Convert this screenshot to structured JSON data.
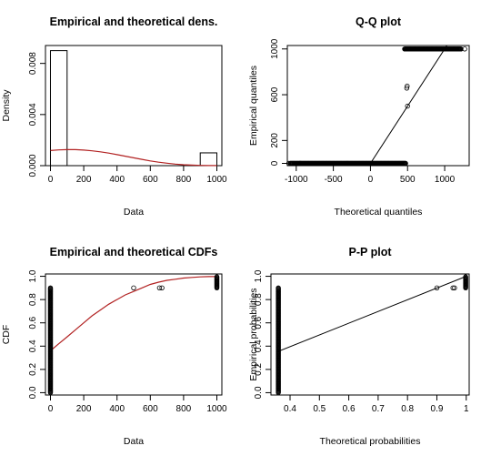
{
  "chart_data": [
    {
      "type": "bar",
      "title": "Empirical and theoretical dens.",
      "xlabel": "Data",
      "ylabel": "Density",
      "xlim": [
        -30,
        1030
      ],
      "ylim": [
        0,
        0.0094
      ],
      "xticks": [
        0,
        200,
        400,
        600,
        800,
        1000
      ],
      "yticks": [
        0.0,
        0.004,
        0.008
      ],
      "ytick_labels": [
        "0.000",
        "0.004",
        "0.008"
      ],
      "histogram": [
        {
          "x0": 0,
          "x1": 100,
          "density": 0.009
        },
        {
          "x0": 100,
          "x1": 900,
          "density": 0.0
        },
        {
          "x0": 900,
          "x1": 1000,
          "density": 0.001
        }
      ],
      "theoretical_density": {
        "x": [
          0,
          50,
          100,
          150,
          200,
          250,
          300,
          350,
          400,
          450,
          500,
          550,
          600,
          650,
          700,
          750,
          800,
          850,
          900,
          950,
          1000
        ],
        "y": [
          0.00118,
          0.00123,
          0.00125,
          0.00125,
          0.00122,
          0.00116,
          0.00108,
          0.00098,
          0.00086,
          0.00074,
          0.00061,
          0.00049,
          0.00037,
          0.00027,
          0.00019,
          0.00012,
          7e-05,
          4e-05,
          2e-05,
          1e-05,
          5e-06
        ]
      },
      "colors": {
        "curve": "#b22222",
        "frame": "#000000"
      }
    },
    {
      "type": "scatter",
      "title": "Q-Q plot",
      "xlabel": "Theoretical quantiles",
      "ylabel": "Empirical quantiles",
      "xlim": [
        -1120,
        1330
      ],
      "ylim": [
        -20,
        1030
      ],
      "xticks": [
        -1000,
        -500,
        0,
        500,
        1000
      ],
      "yticks": [
        0,
        200,
        600,
        1000
      ],
      "points_bottom_run": {
        "x_from": -1080,
        "x_to": 480,
        "y": 0
      },
      "points_top_run": {
        "x_from": 460,
        "x_to": 1220,
        "y": 1000
      },
      "points": [
        [
          -1100,
          0
        ],
        [
          -950,
          0
        ],
        [
          500,
          500
        ],
        [
          490,
          658
        ],
        [
          495,
          675
        ],
        [
          1220,
          1000
        ],
        [
          1270,
          1000
        ]
      ],
      "reference_line": [
        [
          0,
          0
        ],
        [
          1000,
          1000
        ]
      ]
    },
    {
      "type": "line",
      "title": "Empirical and theoretical CDFs",
      "xlabel": "Data",
      "ylabel": "CDF",
      "xlim": [
        -30,
        1030
      ],
      "ylim": [
        -0.02,
        1.02
      ],
      "xticks": [
        0,
        200,
        400,
        600,
        800,
        1000
      ],
      "yticks": [
        0.0,
        0.2,
        0.4,
        0.6,
        0.8,
        1.0
      ],
      "ytick_labels": [
        "0.0",
        "0.2",
        "0.4",
        "0.6",
        "0.8",
        "1.0"
      ],
      "theoretical_cdf": {
        "x": [
          0,
          50,
          100,
          150,
          200,
          250,
          300,
          350,
          400,
          450,
          500,
          550,
          600,
          650,
          700,
          750,
          800,
          850,
          900,
          950,
          1000
        ],
        "y": [
          0.36,
          0.42,
          0.48,
          0.54,
          0.6,
          0.66,
          0.71,
          0.76,
          0.8,
          0.84,
          0.87,
          0.9,
          0.93,
          0.95,
          0.965,
          0.975,
          0.985,
          0.99,
          0.995,
          0.997,
          0.998
        ]
      },
      "empirical_runs": [
        {
          "x": 0,
          "y_from": 0.0,
          "y_to": 0.9
        },
        {
          "x": 1000,
          "y_from": 0.9,
          "y_to": 1.0
        }
      ],
      "points": [
        [
          500,
          0.9
        ],
        [
          655,
          0.9
        ],
        [
          670,
          0.9
        ]
      ],
      "colors": {
        "curve": "#b22222"
      }
    },
    {
      "type": "scatter",
      "title": "P-P plot",
      "xlabel": "Theoretical probabilities",
      "ylabel": "Empirical probabilities",
      "xlim": [
        0.335,
        1.01
      ],
      "ylim": [
        -0.02,
        1.02
      ],
      "xticks": [
        0.4,
        0.5,
        0.6,
        0.7,
        0.8,
        0.9,
        1.0
      ],
      "yticks": [
        0.0,
        0.2,
        0.4,
        0.6,
        0.8,
        1.0
      ],
      "ytick_labels": [
        "0.0",
        "0.2",
        "0.4",
        "0.6",
        "0.8",
        "1.0"
      ],
      "runs": [
        {
          "x": 0.36,
          "y_from": 0.0,
          "y_to": 0.9
        },
        {
          "x": 0.998,
          "y_from": 0.9,
          "y_to": 1.0
        }
      ],
      "points": [
        [
          0.9,
          0.9
        ],
        [
          0.955,
          0.9
        ],
        [
          0.96,
          0.9
        ]
      ],
      "reference_line": [
        [
          0.36,
          0.355
        ],
        [
          1.0,
          1.0
        ]
      ]
    }
  ]
}
